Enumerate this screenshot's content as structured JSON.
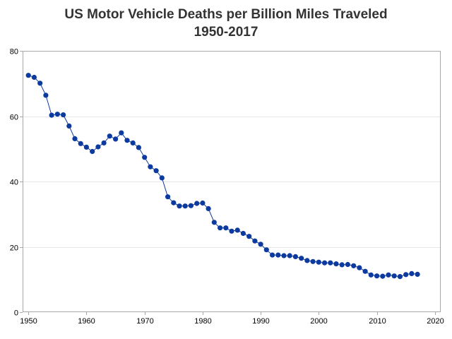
{
  "chart_data": {
    "type": "line",
    "title": "US Motor Vehicle Deaths per Billion Miles Traveled",
    "subtitle": "1950-2017",
    "xlabel": "",
    "ylabel": "",
    "xlim": [
      1949,
      2021
    ],
    "ylim": [
      0,
      80
    ],
    "x_ticks": [
      1950,
      1960,
      1970,
      1980,
      1990,
      2000,
      2010,
      2020
    ],
    "y_ticks": [
      0,
      20,
      40,
      60,
      80
    ],
    "grid": "horizontal",
    "legend": "none",
    "markers": true,
    "series": [
      {
        "color": "#0D3A9E",
        "x": [
          1950,
          1951,
          1952,
          1953,
          1954,
          1955,
          1956,
          1957,
          1958,
          1959,
          1960,
          1961,
          1962,
          1963,
          1964,
          1965,
          1966,
          1967,
          1968,
          1969,
          1970,
          1971,
          1972,
          1973,
          1974,
          1975,
          1976,
          1977,
          1978,
          1979,
          1980,
          1981,
          1982,
          1983,
          1984,
          1985,
          1986,
          1987,
          1988,
          1989,
          1990,
          1991,
          1992,
          1993,
          1994,
          1995,
          1996,
          1997,
          1998,
          1999,
          2000,
          2001,
          2002,
          2003,
          2004,
          2005,
          2006,
          2007,
          2008,
          2009,
          2010,
          2011,
          2012,
          2013,
          2014,
          2015,
          2016,
          2017
        ],
        "values": [
          72.5,
          71.9,
          70.1,
          66.4,
          60.3,
          60.6,
          60.4,
          57.0,
          53.1,
          51.6,
          50.5,
          49.2,
          50.6,
          51.8,
          53.9,
          53.0,
          54.9,
          52.6,
          51.8,
          50.4,
          47.4,
          44.5,
          43.3,
          41.1,
          35.3,
          33.5,
          32.5,
          32.5,
          32.6,
          33.3,
          33.4,
          31.7,
          27.5,
          25.8,
          25.8,
          24.8,
          25.1,
          24.1,
          23.2,
          21.8,
          20.8,
          19.1,
          17.5,
          17.5,
          17.3,
          17.3,
          17.0,
          16.5,
          15.8,
          15.5,
          15.3,
          15.1,
          15.1,
          14.8,
          14.5,
          14.6,
          14.2,
          13.6,
          12.5,
          11.4,
          11.1,
          11.0,
          11.4,
          11.1,
          10.9,
          11.5,
          11.8,
          11.6
        ]
      }
    ]
  }
}
